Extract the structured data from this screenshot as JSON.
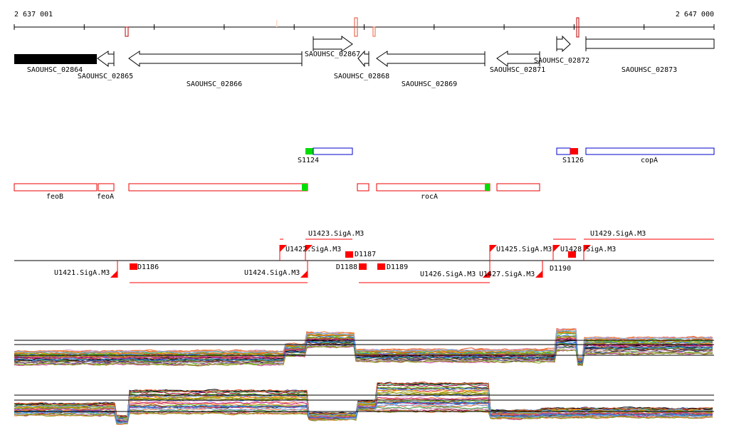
{
  "ruler": {
    "start_label": "2 637 001",
    "end_label": "2 647 000"
  },
  "genes": [
    {
      "id": "SAOUHSC_02864",
      "strand": "+"
    },
    {
      "id": "SAOUHSC_02865",
      "strand": "-"
    },
    {
      "id": "SAOUHSC_02866",
      "strand": "-"
    },
    {
      "id": "SAOUHSC_02867",
      "strand": "+"
    },
    {
      "id": "SAOUHSC_02868",
      "strand": "-"
    },
    {
      "id": "SAOUHSC_02869",
      "strand": "-"
    },
    {
      "id": "SAOUHSC_02871",
      "strand": "-"
    },
    {
      "id": "SAOUHSC_02872",
      "strand": "+"
    },
    {
      "id": "SAOUHSC_02873",
      "strand": "+"
    }
  ],
  "annotations": {
    "s1124": "S1124",
    "s1126": "S1126",
    "copA": "copA"
  },
  "features": {
    "feoB": "feoB",
    "feoA": "feoA",
    "rocA": "rocA"
  },
  "promoters": {
    "u1421": "U1421.SigA.M3",
    "u1422": "U1422.SigA.M3",
    "u1423": "U1423.SigA.M3",
    "u1424": "U1424.SigA.M3",
    "u1425": "U1425.SigA.M3",
    "u1426": "U1426.SigA.M3",
    "u1427": "U1427.SigA.M3",
    "u1428": "U1428.SigA.M3",
    "u1429": "U1429.SigA.M3",
    "d1186": "D1186",
    "d1187": "D1187",
    "d1188": "D1188",
    "d1189": "D1189",
    "d1190": "D1190"
  },
  "colors": {
    "feature": "#ff0000",
    "start": "#00e000",
    "annotation": "#0000cc"
  }
}
